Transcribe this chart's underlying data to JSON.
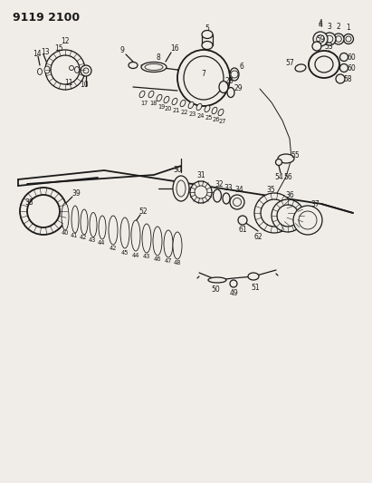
{
  "title": "9119 2100",
  "bg_color": "#f0ede8",
  "fg_color": "#1a1a1a",
  "lw_heavy": 1.3,
  "lw_med": 0.9,
  "lw_light": 0.6,
  "fs_label": 5.5,
  "fs_title": 9.0
}
